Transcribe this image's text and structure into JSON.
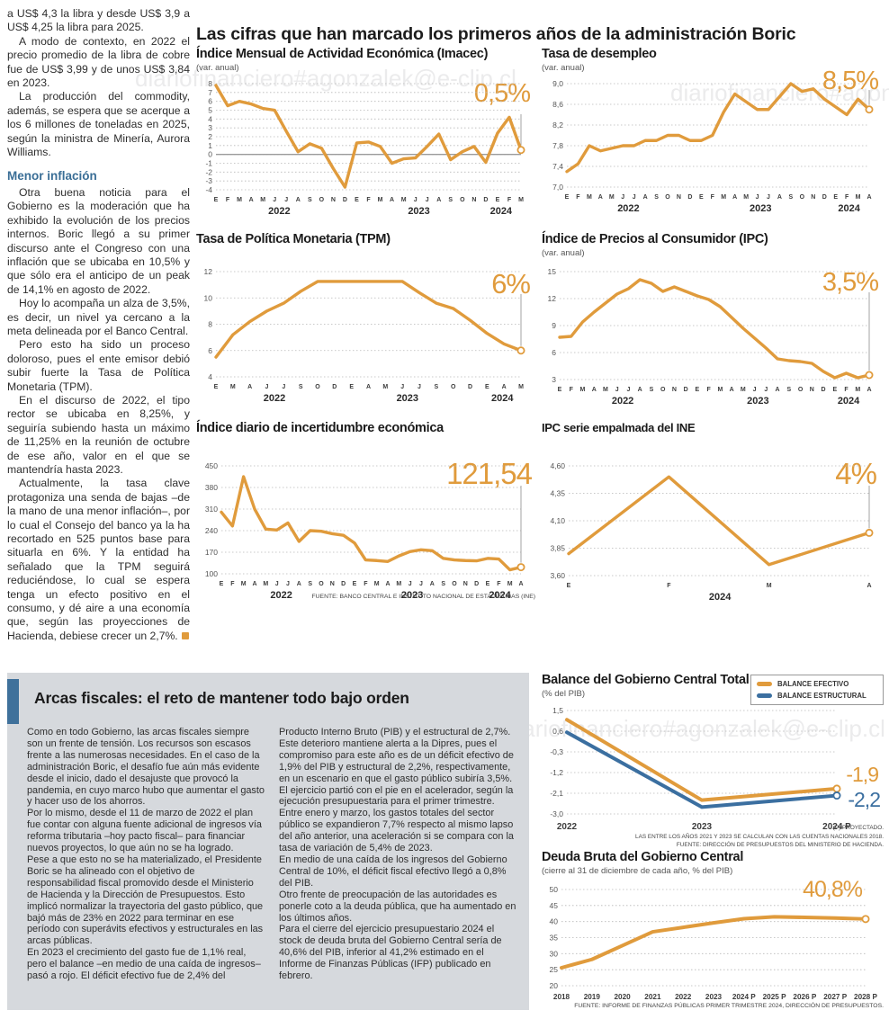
{
  "page": {
    "main_title": "Las cifras que han marcado los primeros años de la administración Boric",
    "watermark": "diariofinanciero#agonzalek@e-clip.cl"
  },
  "article_left": {
    "paras_top": [
      "a US$ 4,3 la libra y desde US$ 3,9 a US$ 4,25 la libra para 2025.",
      "A modo de contexto, en 2022 el precio promedio de la libra de cobre fue de US$ 3,99 y de unos US$ 3,84 en 2023.",
      "La producción del commodity, además, se espera que se acerque a los 6 millones de toneladas en 2025, según la ministra de Minería, Aurora Williams."
    ],
    "subhead": "Menor inflación",
    "paras_bottom": [
      "Otra buena noticia para el Gobierno es la moderación que ha exhibido la evolución de los precios internos. Boric llegó a su primer discurso ante el Congreso con una inflación que se ubicaba en 10,5% y que sólo era el anticipo de un peak de 14,1% en agosto de 2022.",
      "Hoy lo acompaña un alza de 3,5%, es decir, un nivel ya cercano a la meta delineada por el Banco Central.",
      "Pero esto ha sido un proceso doloroso, pues el ente emisor debió subir fuerte la Tasa de Política Monetaria (TPM).",
      "En el discurso de 2022, el tipo rector se ubicaba en 8,25%, y seguiría subiendo hasta un máximo de 11,25% en la reunión de octubre de ese año, valor en el que se mantendría hasta 2023.",
      "Actualmente, la tasa clave protagoniza una senda de bajas –de la mano de una menor inflación–, por lo cual el Consejo del banco ya la ha recortado en 525 puntos base para situarla en 6%. Y la entidad ha señalado que la TPM seguirá reduciéndose, lo cual se espera tenga un efecto positivo en el consumo, y dé aire a una economía que, según las proyecciones de Hacienda, debiese crecer un 2,7%."
    ]
  },
  "arcas": {
    "title": "Arcas fiscales: el reto de mantener todo bajo orden",
    "col1": [
      "Como en todo Gobierno, las arcas fiscales siempre son un frente de tensión. Los recursos son escasos frente a las numerosas necesidades. En el caso de la administración Boric, el desafío fue aún más evidente desde el inicio, dado el desajuste que provocó la pandemia, en cuyo marco hubo que aumentar el gasto y hacer uso de los ahorros.",
      "Por lo mismo, desde el 11 de marzo de 2022 el plan fue contar con alguna fuente adicional de ingresos vía reforma tributaria –hoy pacto fiscal– para financiar nuevos proyectos, lo que aún no se ha logrado.",
      "Pese a que esto no se ha materializado, el Presidente Boric se ha alineado con el objetivo de responsabilidad fiscal promovido desde el Ministerio de Hacienda y la Dirección de Presupuestos. Esto implicó normalizar la trayectoria del gasto público, que bajó más de 23% en 2022 para terminar en ese período con superávits efectivos y estructurales en las arcas públicas.",
      "En 2023 el crecimiento del gasto fue de 1,1% real, pero el balance –en medio de una caída de ingresos–  pasó a rojo. El déficit efectivo fue de 2,4% del"
    ],
    "col2": [
      "Producto Interno Bruto (PIB) y el estructural de 2,7%. Este deterioro mantiene alerta a la Dipres, pues el compromiso para este año es de un déficit efectivo de 1,9% del PIB y estructural de 2,2%, respectivamente, en un escenario en que el gasto público subiría 3,5%.",
      "El ejercicio partió con el pie en el acelerador, según la ejecución presupuestaria para el primer trimestre. Entre enero y marzo, los gastos totales del sector público se expandieron 7,7% respecto al mismo lapso del año anterior, una aceleración si se compara con la tasa de variación de 5,4% de 2023.",
      "En medio de una caída de los ingresos del Gobierno Central de 10%, el déficit fiscal efectivo llegó a 0,8% del PIB.",
      "Otro frente de preocupación de las autoridades es ponerle coto a la deuda pública, que ha aumentado en los últimos años.",
      "Para el cierre del ejercicio presupuestario 2024 el stock de deuda bruta del Gobierno Central sería de 40,6% del PIB, inferior al 41,2% estimado en el Informe de Finanzas Públicas (IFP) publicado en febrero."
    ]
  },
  "chart_data": [
    {
      "id": "imacec",
      "type": "line",
      "title": "Índice Mensual de Actividad Económica (Imacec)",
      "subtitle": "(var. anual)",
      "value_label": "0,5%",
      "x_labels": [
        "E",
        "F",
        "M",
        "A",
        "M",
        "J",
        "J",
        "A",
        "S",
        "O",
        "N",
        "D",
        "E",
        "F",
        "M",
        "A",
        "M",
        "J",
        "J",
        "A",
        "S",
        "O",
        "N",
        "D",
        "E",
        "F",
        "M"
      ],
      "years": [
        {
          "label": "2022",
          "idx": 5.4
        },
        {
          "label": "2023",
          "idx": 17.3
        },
        {
          "label": "2024",
          "idx": 24.3
        }
      ],
      "y_ticks": [
        {
          "v": 8,
          "t": "8"
        },
        {
          "v": 7,
          "t": "7"
        },
        {
          "v": 6,
          "t": "6"
        },
        {
          "v": 5,
          "t": "5"
        },
        {
          "v": 4,
          "t": "4"
        },
        {
          "v": 3,
          "t": "3"
        },
        {
          "v": 2,
          "t": "2"
        },
        {
          "v": 1,
          "t": "1"
        },
        {
          "v": 0,
          "t": "0"
        },
        {
          "v": -1,
          "t": "-1"
        },
        {
          "v": -2,
          "t": "-2"
        },
        {
          "v": -3,
          "t": "-3"
        },
        {
          "v": -4,
          "t": "-4"
        }
      ],
      "y_min": -4,
      "y_max": 8,
      "zero_line": true,
      "series": [
        {
          "name": "Imacec",
          "color": "#e09b3c",
          "values": [
            7.8,
            5.5,
            6,
            5.7,
            5.2,
            5,
            2.6,
            0.3,
            1.2,
            0.7,
            -1.6,
            -3.7,
            1.3,
            1.4,
            0.9,
            -1,
            -0.5,
            -0.4,
            0.9,
            2.3,
            -0.6,
            0.3,
            0.9,
            -0.9,
            2.4,
            4.2,
            0.5
          ]
        }
      ]
    },
    {
      "id": "desempleo",
      "type": "line",
      "title": "Tasa de desempleo",
      "subtitle": "(var. anual)",
      "value_label": "8,5%",
      "x_labels": [
        "E",
        "F",
        "M",
        "A",
        "M",
        "J",
        "J",
        "A",
        "S",
        "O",
        "N",
        "D",
        "E",
        "F",
        "M",
        "A",
        "M",
        "J",
        "J",
        "A",
        "S",
        "O",
        "N",
        "D",
        "E",
        "F",
        "M",
        "A"
      ],
      "years": [
        {
          "label": "2022",
          "idx": 5.5
        },
        {
          "label": "2023",
          "idx": 17.3
        },
        {
          "label": "2024",
          "idx": 25.2
        }
      ],
      "y_ticks": [
        {
          "v": 9.0,
          "t": "9,0"
        },
        {
          "v": 8.6,
          "t": "8,6"
        },
        {
          "v": 8.2,
          "t": "8,2"
        },
        {
          "v": 7.8,
          "t": "7,8"
        },
        {
          "v": 7.4,
          "t": "7,4"
        },
        {
          "v": 7.0,
          "t": "7,0"
        }
      ],
      "y_min": 7.0,
      "y_max": 9.0,
      "series": [
        {
          "name": "Tasa de desempleo",
          "color": "#e09b3c",
          "values": [
            7.3,
            7.45,
            7.8,
            7.7,
            7.75,
            7.8,
            7.8,
            7.9,
            7.9,
            8.0,
            8.0,
            7.9,
            7.9,
            8.0,
            8.45,
            8.8,
            8.65,
            8.5,
            8.5,
            8.75,
            9.0,
            8.85,
            8.9,
            8.7,
            8.55,
            8.4,
            8.7,
            8.5
          ]
        }
      ]
    },
    {
      "id": "tpm",
      "type": "line",
      "title": "Tasa de Política Monetaria (TPM)",
      "value_label": "6%",
      "x_labels": [
        "E",
        "M",
        "A",
        "J",
        "J",
        "S",
        "O",
        "D",
        "E",
        "A",
        "M",
        "J",
        "J",
        "S",
        "O",
        "D",
        "E",
        "A",
        "M"
      ],
      "years": [
        {
          "label": "2022",
          "idx": 3.45
        },
        {
          "label": "2023",
          "idx": 11.3
        },
        {
          "label": "2024",
          "idx": 16.9
        }
      ],
      "y_ticks": [
        {
          "v": 12,
          "t": "12"
        },
        {
          "v": 10,
          "t": "10"
        },
        {
          "v": 8,
          "t": "8"
        },
        {
          "v": 6,
          "t": "6"
        },
        {
          "v": 4,
          "t": "4"
        }
      ],
      "y_min": 4,
      "y_max": 12,
      "series": [
        {
          "name": "TPM",
          "color": "#e09b3c",
          "values": [
            5.5,
            7.2,
            8.2,
            9.0,
            9.6,
            10.5,
            11.25,
            11.25,
            11.25,
            11.25,
            11.25,
            11.25,
            10.4,
            9.6,
            9.2,
            8.3,
            7.3,
            6.5,
            6.0
          ]
        }
      ]
    },
    {
      "id": "ipc",
      "type": "line",
      "title": "Índice de Precios al Consumidor (IPC)",
      "subtitle": "(var. anual)",
      "value_label": "3,5%",
      "x_labels": [
        "E",
        "F",
        "M",
        "A",
        "M",
        "J",
        "J",
        "A",
        "S",
        "O",
        "N",
        "D",
        "E",
        "F",
        "M",
        "A",
        "M",
        "J",
        "J",
        "A",
        "S",
        "O",
        "N",
        "D",
        "E",
        "F",
        "M",
        "A"
      ],
      "years": [
        {
          "label": "2022",
          "idx": 5.5
        },
        {
          "label": "2023",
          "idx": 17.3
        },
        {
          "label": "2024",
          "idx": 25.2
        }
      ],
      "y_ticks": [
        {
          "v": 15,
          "t": "15"
        },
        {
          "v": 12,
          "t": "12"
        },
        {
          "v": 9,
          "t": "9"
        },
        {
          "v": 6,
          "t": "6"
        },
        {
          "v": 3,
          "t": "3"
        }
      ],
      "y_min": 3,
      "y_max": 15,
      "series": [
        {
          "name": "IPC",
          "color": "#e09b3c",
          "values": [
            7.7,
            7.8,
            9.4,
            10.5,
            11.5,
            12.5,
            13.1,
            14.1,
            13.7,
            12.8,
            13.3,
            12.8,
            12.3,
            11.9,
            11.1,
            9.9,
            8.7,
            7.6,
            6.5,
            5.3,
            5.1,
            5.0,
            4.8,
            3.9,
            3.2,
            3.7,
            3.2,
            3.5
          ]
        }
      ]
    },
    {
      "id": "incertidumbre",
      "type": "line",
      "title": "Índice diario de incertidumbre económica",
      "value_label": "121,54",
      "x_labels": [
        "E",
        "F",
        "M",
        "A",
        "M",
        "J",
        "J",
        "A",
        "S",
        "O",
        "N",
        "D",
        "E",
        "F",
        "M",
        "A",
        "M",
        "J",
        "J",
        "A",
        "S",
        "O",
        "N",
        "D",
        "E",
        "F",
        "M",
        "A"
      ],
      "years": [
        {
          "label": "2022",
          "idx": 5.4
        },
        {
          "label": "2023",
          "idx": 17.2
        },
        {
          "label": "2024",
          "idx": 25.1
        }
      ],
      "y_ticks": [
        {
          "v": 450,
          "t": "450"
        },
        {
          "v": 380,
          "t": "380"
        },
        {
          "v": 310,
          "t": "310"
        },
        {
          "v": 240,
          "t": "240"
        },
        {
          "v": 170,
          "t": "170"
        },
        {
          "v": 100,
          "t": "100"
        }
      ],
      "y_min": 100,
      "y_max": 450,
      "source": "FUENTE: BANCO CENTRAL E INSTITUTO NACIONAL DE ESTADÍSTICAS (INE)",
      "series": [
        {
          "name": "Incertidumbre económica",
          "color": "#e09b3c",
          "values": [
            300,
            255,
            415,
            310,
            245,
            242,
            265,
            205,
            240,
            238,
            230,
            225,
            200,
            145,
            143,
            140,
            158,
            172,
            178,
            175,
            150,
            145,
            143,
            142,
            150,
            148,
            113,
            121.54
          ]
        }
      ]
    },
    {
      "id": "ipc_ine",
      "type": "line",
      "title": "IPC serie empalmada del INE",
      "value_label": "4%",
      "x_labels": [
        "E",
        "F",
        "M",
        "A"
      ],
      "years": [
        {
          "label": "2024",
          "idx": 1.51
        }
      ],
      "y_ticks": [
        {
          "v": 4.6,
          "t": "4,60"
        },
        {
          "v": 4.35,
          "t": "4,35"
        },
        {
          "v": 4.1,
          "t": "4,10"
        },
        {
          "v": 3.85,
          "t": "3,85"
        },
        {
          "v": 3.6,
          "t": "3,60"
        }
      ],
      "y_min": 3.6,
      "y_max": 4.6,
      "series": [
        {
          "name": "IPC serie empalmada",
          "color": "#e09b3c",
          "values": [
            3.8,
            4.5,
            3.7,
            3.99
          ]
        }
      ]
    },
    {
      "id": "balance",
      "type": "line",
      "title": "Balance del Gobierno Central Total",
      "subtitle": "(% del PIB)",
      "value_labels": [
        {
          "text": "-1,9"
        },
        {
          "text": "-2,2"
        }
      ],
      "legend": [
        {
          "label": "BALANCE EFECTIVO"
        },
        {
          "label": "BALANCE ESTRUCTURAL"
        }
      ],
      "x_labels": [
        "2022",
        "2023",
        "2024 P"
      ],
      "y_ticks": [
        {
          "v": 1.5,
          "t": "1,5"
        },
        {
          "v": 0.6,
          "t": "0,6"
        },
        {
          "v": -0.3,
          "t": "-0,3"
        },
        {
          "v": -1.2,
          "t": "-1,2"
        },
        {
          "v": -2.1,
          "t": "-2,1"
        },
        {
          "v": -3.0,
          "t": "-3,0"
        }
      ],
      "y_min": -3.0,
      "y_max": 1.5,
      "footnotes": [
        "(P) PROYECTADO.",
        "LAS ENTRE LOS AÑOS 2021 Y 2023 SE CALCULAN  CON LAS CUENTAS NACIONALES 2018.",
        "FUENTE: DIRECCIÓN DE PRESUPUESTOS DEL MINISTERIO DE HACIENDA."
      ],
      "series": [
        {
          "name": "Balance efectivo",
          "color": "#e09b3c",
          "values": [
            1.1,
            -2.4,
            -1.9
          ]
        },
        {
          "name": "Balance estructural",
          "color": "#3b6fa0",
          "values": [
            0.55,
            -2.7,
            -2.2
          ]
        }
      ]
    },
    {
      "id": "deuda",
      "type": "line",
      "title": "Deuda Bruta del Gobierno Central",
      "subtitle": "(cierre al 31 de diciembre de cada año, % del PIB)",
      "value_label": "40,8%",
      "x_labels": [
        "2018",
        "2019",
        "2020",
        "2021",
        "2022",
        "2023",
        "2024 P",
        "2025 P",
        "2026 P",
        "2027 P",
        "2028 P"
      ],
      "y_ticks": [
        {
          "v": 50,
          "t": "50"
        },
        {
          "v": 45,
          "t": "45"
        },
        {
          "v": 40,
          "t": "40"
        },
        {
          "v": 35,
          "t": "35"
        },
        {
          "v": 30,
          "t": "30"
        },
        {
          "v": 25,
          "t": "25"
        },
        {
          "v": 20,
          "t": "20"
        }
      ],
      "y_min": 20,
      "y_max": 50,
      "source": "FUENTE: INFORME DE FINANZAS PÚBLICAS PRIMER TRIMESTRE 2024, DIRECCIÓN DE PRESUPUESTOS.",
      "series": [
        {
          "name": "Deuda bruta",
          "color": "#e09b3c",
          "values": [
            25.6,
            28.2,
            32.5,
            36.8,
            38.2,
            39.6,
            40.9,
            41.5,
            41.3,
            41.1,
            40.8
          ]
        }
      ]
    }
  ]
}
